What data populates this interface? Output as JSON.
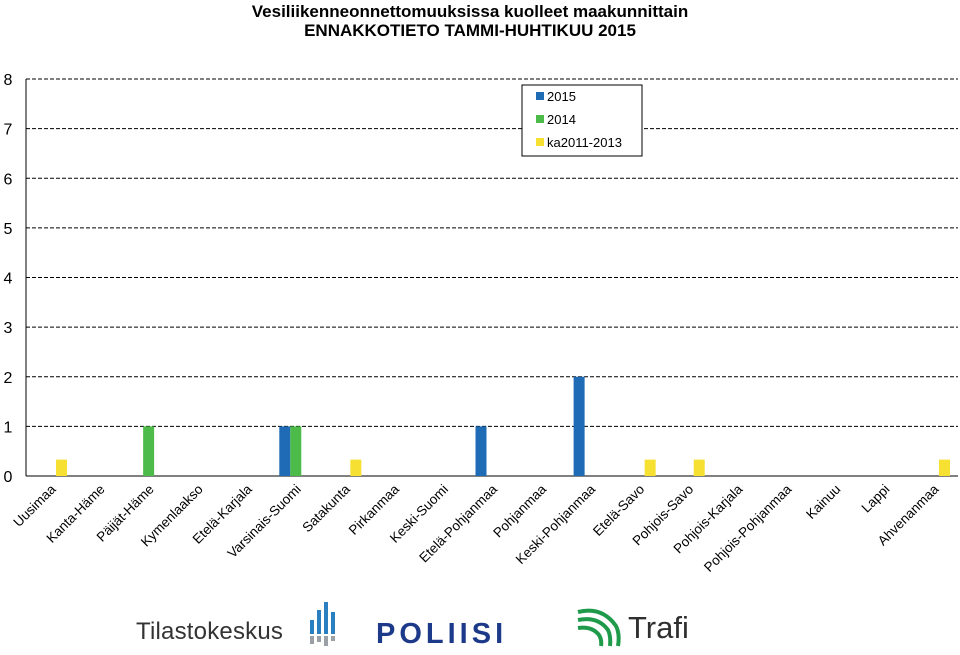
{
  "chart_data": {
    "type": "bar",
    "title": "Vesiliikenneonnettomuuksissa kuolleet maakunnittain",
    "subtitle": "ENNAKKOTIETO TAMMI-HUHTIKUU 2015",
    "categories": [
      "Uusimaa",
      "Kanta-Häme",
      "Päijät-Häme",
      "Kymenlaakso",
      "Etelä-Karjala",
      "Varsinais-Suomi",
      "Satakunta",
      "Pirkanmaa",
      "Keski-Suomi",
      "Etelä-Pohjanmaa",
      "Pohjanmaa",
      "Keski-Pohjanmaa",
      "Etelä-Savo",
      "Pohjois-Savo",
      "Pohjois-Karjala",
      "Pohjois-Pohjanmaa",
      "Kainuu",
      "Lappi",
      "Ahvenanmaa"
    ],
    "series": [
      {
        "name": "2015",
        "color": "#1f6bb5",
        "values": [
          0,
          0,
          0,
          0,
          0,
          1,
          0,
          0,
          0,
          1,
          0,
          2,
          0,
          0,
          0,
          0,
          0,
          0,
          0
        ]
      },
      {
        "name": "2014",
        "color": "#4dbb4a",
        "values": [
          0,
          0,
          1,
          0,
          0,
          1,
          0,
          0,
          0,
          0,
          0,
          0,
          0,
          0,
          0,
          0,
          0,
          0,
          0
        ]
      },
      {
        "name": "ka2011-2013",
        "color": "#f6e032",
        "values": [
          0.33,
          0,
          0,
          0,
          0,
          0,
          0.33,
          0,
          0,
          0,
          0,
          0,
          0.33,
          0.33,
          0,
          0,
          0,
          0,
          0.33
        ]
      }
    ],
    "ylim": [
      0,
      8
    ],
    "yticks": [
      0,
      1,
      2,
      3,
      4,
      5,
      6,
      7,
      8
    ],
    "grid": true,
    "legend_position": "top-center"
  },
  "logos": {
    "tilastokeskus": "Tilastokeskus",
    "poliisi": "POLIISI",
    "trafi": "Trafi"
  }
}
